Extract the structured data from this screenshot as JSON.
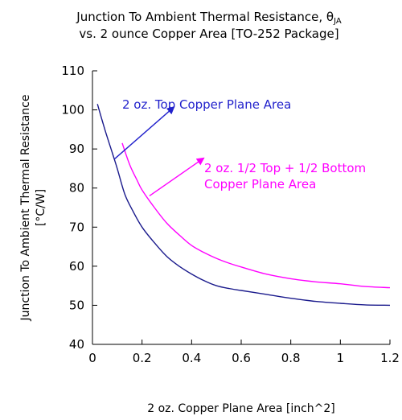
{
  "chart_data": {
    "type": "line",
    "title": {
      "line1_prefix": "Junction To Ambient Thermal Resistance, θ",
      "line1_sub": "JA",
      "line2": "vs. 2 ounce Copper Area [TO-252  Package]"
    },
    "xlabel": "2 oz. Copper Plane Area [inch^2]",
    "ylabel": [
      "Junction To Ambient Thermal Resistance",
      "[°C/W]"
    ],
    "xlim": [
      0,
      1.2
    ],
    "ylim": [
      40,
      110
    ],
    "x_ticks": [
      0,
      0.2,
      0.4,
      0.6,
      0.8,
      1,
      1.2
    ],
    "x_tick_labels": [
      "0",
      "0.2",
      "0.4",
      "0.6",
      "0.8",
      "1",
      "1.2"
    ],
    "y_ticks": [
      40,
      50,
      60,
      70,
      80,
      90,
      100,
      110
    ],
    "y_tick_labels": [
      "40",
      "50",
      "60",
      "70",
      "80",
      "90",
      "100",
      "110"
    ],
    "grid": false,
    "series": [
      {
        "name": "2 oz. Top Copper Plane Area",
        "color": "#1a1a8c",
        "label_color": "#2222cc",
        "x": [
          0.02,
          0.05,
          0.08,
          0.1,
          0.13,
          0.16,
          0.2,
          0.25,
          0.3,
          0.35,
          0.4,
          0.45,
          0.5,
          0.55,
          0.6,
          0.7,
          0.8,
          0.9,
          1.0,
          1.1,
          1.2
        ],
        "y": [
          101.5,
          95,
          89,
          85,
          78.5,
          74.5,
          70,
          66,
          62.5,
          60,
          58,
          56.3,
          55,
          54.3,
          53.8,
          52.8,
          51.8,
          51,
          50.5,
          50.1,
          50
        ]
      },
      {
        "name": "2 oz. 1/2 Top  + 1/2 Bottom Copper Plane Area",
        "label_lines": [
          "2 oz. 1/2 Top  + 1/2 Bottom",
          "Copper Plane Area"
        ],
        "color": "#ff00ff",
        "label_color": "#ff00ff",
        "x": [
          0.12,
          0.15,
          0.18,
          0.2,
          0.25,
          0.3,
          0.35,
          0.4,
          0.45,
          0.5,
          0.55,
          0.6,
          0.7,
          0.8,
          0.9,
          1.0,
          1.1,
          1.2
        ],
        "y": [
          91.5,
          86,
          82,
          79.5,
          75,
          71,
          68,
          65.3,
          63.5,
          62,
          60.8,
          59.8,
          58,
          56.8,
          56,
          55.5,
          54.8,
          54.5
        ]
      }
    ],
    "annotations": [
      {
        "series": 0,
        "from": [
          0.09,
          87.5
        ],
        "to": [
          0.33,
          100.8
        ]
      },
      {
        "series": 1,
        "from": [
          0.23,
          78
        ],
        "to": [
          0.45,
          87.7
        ]
      }
    ]
  }
}
